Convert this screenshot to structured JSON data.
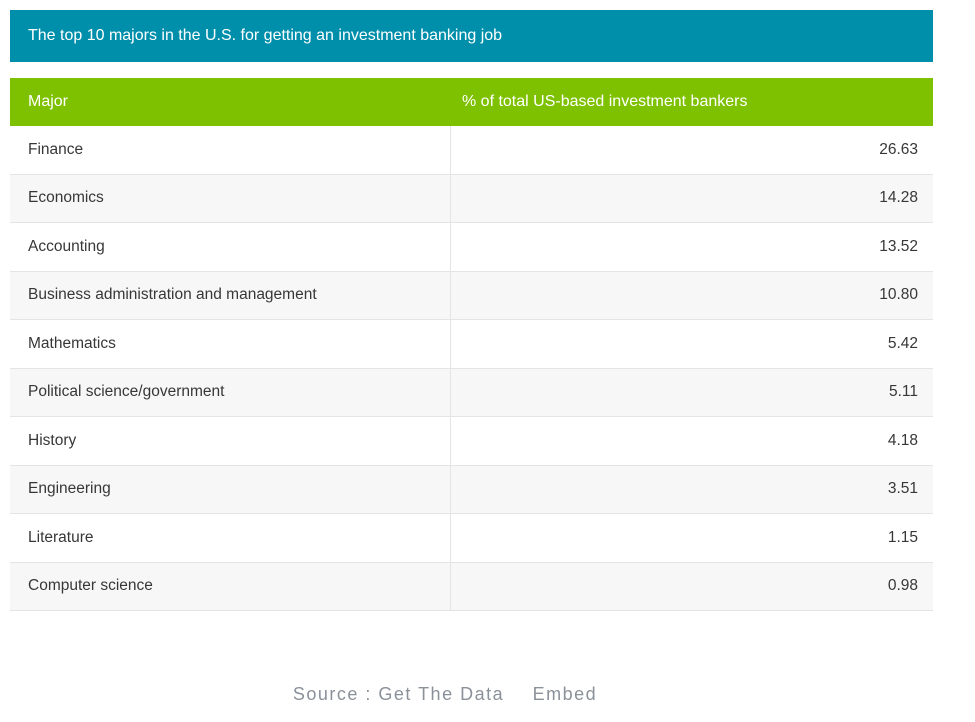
{
  "banner": {
    "title": "The top 10 majors in the U.S. for getting an investment banking job"
  },
  "table": {
    "columns": {
      "major": "Major",
      "percent": "% of total US-based investment bankers"
    },
    "rows": [
      {
        "major": "Finance",
        "value": "26.63"
      },
      {
        "major": "Economics",
        "value": "14.28"
      },
      {
        "major": "Accounting",
        "value": "13.52"
      },
      {
        "major": "Business administration and management",
        "value": "10.80"
      },
      {
        "major": "Mathematics",
        "value": "5.42"
      },
      {
        "major": "Political science/government",
        "value": "5.11"
      },
      {
        "major": "History",
        "value": "4.18"
      },
      {
        "major": "Engineering",
        "value": "3.51"
      },
      {
        "major": "Literature",
        "value": "1.15"
      },
      {
        "major": "Computer science",
        "value": "0.98"
      }
    ]
  },
  "footer": {
    "source_prefix": "Source :",
    "source_link": "Get The Data",
    "embed_link": "Embed"
  },
  "colors": {
    "banner_bg": "#008FAB",
    "header_bg": "#7EC100",
    "row_alt_bg": "#F7F7F7",
    "border": "#E4E4E4",
    "row_text": "#373737",
    "footer_text": "#8B9199"
  },
  "chart_data": {
    "type": "table",
    "title": "The top 10 majors in the U.S. for getting an investment banking job",
    "columns": [
      "Major",
      "% of total US-based investment bankers"
    ],
    "categories": [
      "Finance",
      "Economics",
      "Accounting",
      "Business administration and management",
      "Mathematics",
      "Political science/government",
      "History",
      "Engineering",
      "Literature",
      "Computer science"
    ],
    "values": [
      26.63,
      14.28,
      13.52,
      10.8,
      5.42,
      5.11,
      4.18,
      3.51,
      1.15,
      0.98
    ],
    "source": "Get The Data"
  }
}
